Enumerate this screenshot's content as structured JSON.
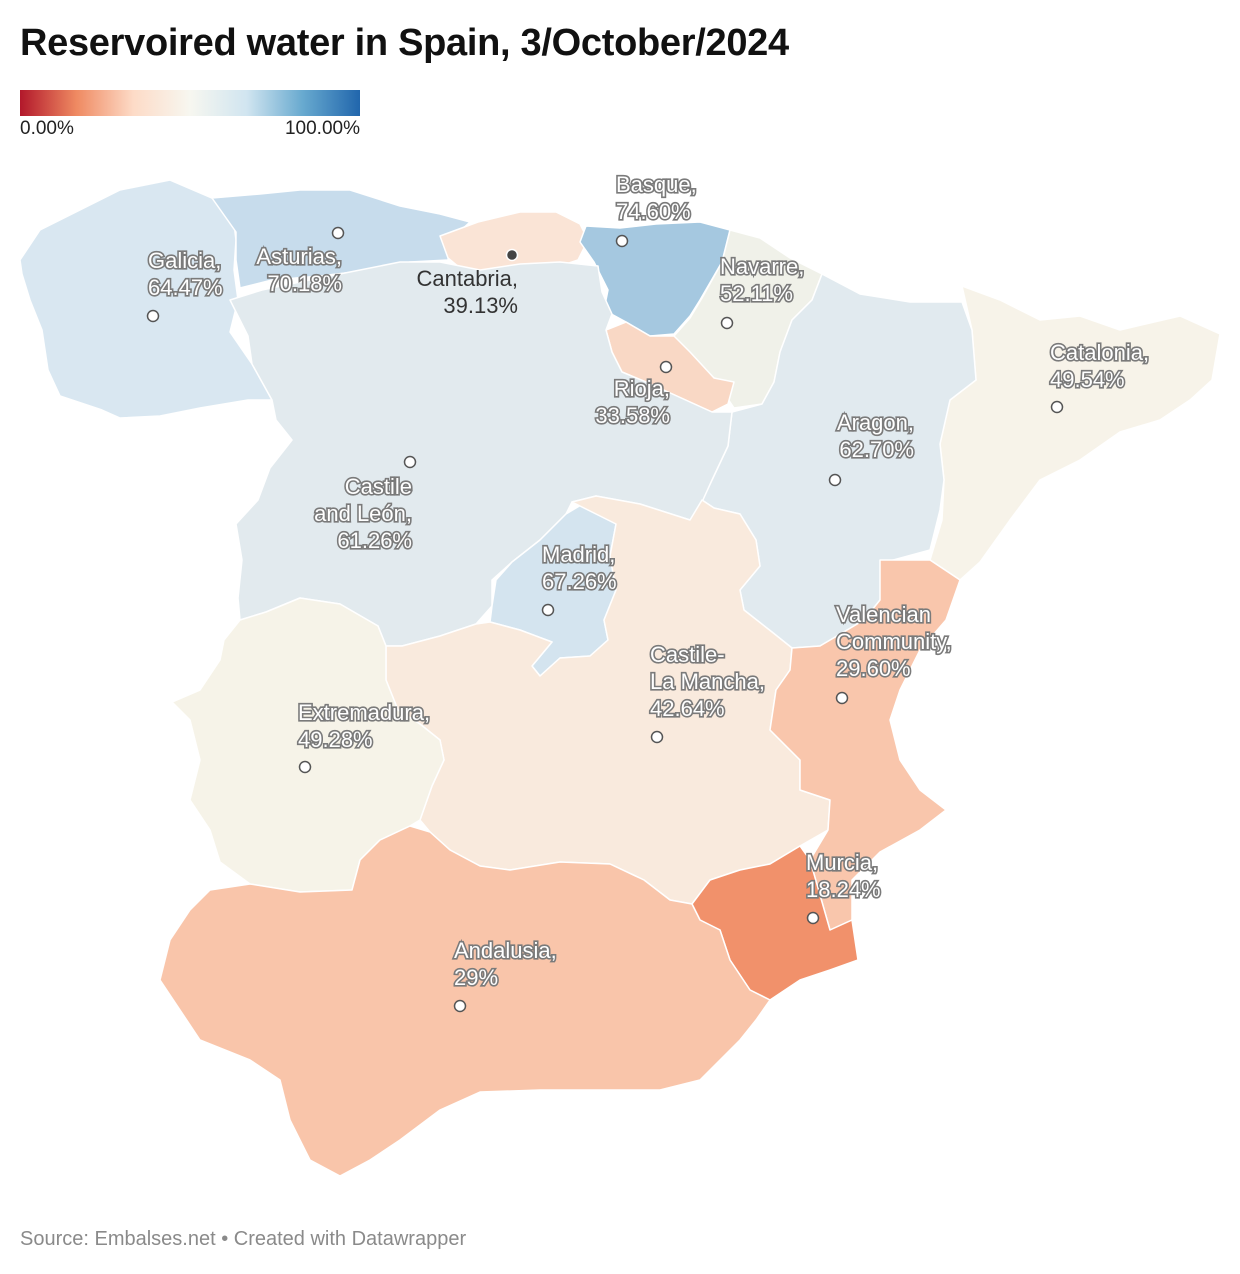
{
  "title": "Reservoired water in Spain, 3/October/2024",
  "legend": {
    "min_label": "0.00%",
    "max_label": "100.00%"
  },
  "footer": "Source: Embalses.net • Created with Datawrapper",
  "regions": [
    {
      "id": "galicia",
      "name_lines": [
        "Galicia,"
      ],
      "value_label": "64.47%",
      "value": 64.47,
      "fill": "#d9e7f1"
    },
    {
      "id": "asturias",
      "name_lines": [
        "Asturias,"
      ],
      "value_label": "70.18%",
      "value": 70.18,
      "fill": "#c7dcec"
    },
    {
      "id": "cantabria",
      "name_lines": [
        "Cantabria,"
      ],
      "value_label": "39.13%",
      "value": 39.13,
      "fill": "#fae4d6"
    },
    {
      "id": "basque",
      "name_lines": [
        "Basque,"
      ],
      "value_label": "74.60%",
      "value": 74.6,
      "fill": "#a5c8e0"
    },
    {
      "id": "navarre",
      "name_lines": [
        "Navarre,"
      ],
      "value_label": "52.11%",
      "value": 52.11,
      "fill": "#f0f1e9"
    },
    {
      "id": "rioja",
      "name_lines": [
        "Rioja,"
      ],
      "value_label": "33.58%",
      "value": 33.58,
      "fill": "#f9d8c5"
    },
    {
      "id": "catalonia",
      "name_lines": [
        "Catalonia,"
      ],
      "value_label": "49.54%",
      "value": 49.54,
      "fill": "#f7f3e9"
    },
    {
      "id": "aragon",
      "name_lines": [
        "Aragon,"
      ],
      "value_label": "62.70%",
      "value": 62.7,
      "fill": "#e1eaef"
    },
    {
      "id": "castile-leon",
      "name_lines": [
        "Castile",
        "and León,"
      ],
      "value_label": "61.26%",
      "value": 61.26,
      "fill": "#e2eaee"
    },
    {
      "id": "madrid",
      "name_lines": [
        "Madrid,"
      ],
      "value_label": "67.26%",
      "value": 67.26,
      "fill": "#d4e4ef"
    },
    {
      "id": "castile-la-mancha",
      "name_lines": [
        "Castile-",
        "La Mancha,"
      ],
      "value_label": "42.64%",
      "value": 42.64,
      "fill": "#f9eadd"
    },
    {
      "id": "valencian-community",
      "name_lines": [
        "Valencian",
        "Community,"
      ],
      "value_label": "29.60%",
      "value": 29.6,
      "fill": "#f9c6ac"
    },
    {
      "id": "extremadura",
      "name_lines": [
        "Extremadura,"
      ],
      "value_label": "49.28%",
      "value": 49.28,
      "fill": "#f6f3e8"
    },
    {
      "id": "murcia",
      "name_lines": [
        "Murcia,"
      ],
      "value_label": "18.24%",
      "value": 18.24,
      "fill": "#f1916b"
    },
    {
      "id": "andalusia",
      "name_lines": [
        "Andalusia,"
      ],
      "value_label": "29%",
      "value": 29,
      "fill": "#f9c5aa"
    }
  ]
}
